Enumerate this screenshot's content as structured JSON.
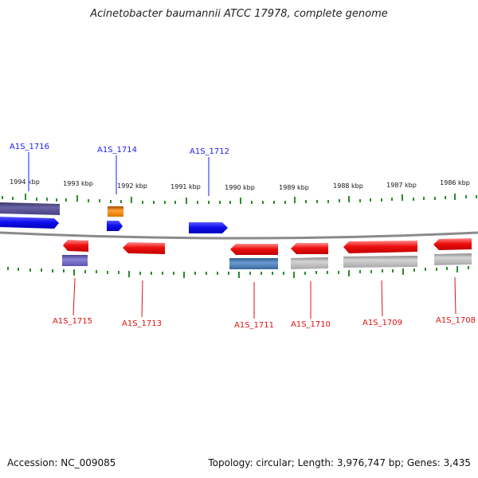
{
  "title": "Acinetobacter baumannii ATCC 17978, complete genome",
  "footer": {
    "accession": "Accession: NC_009085",
    "summary": "Topology: circular; Length: 3,976,747 bp; Genes: 3,435"
  },
  "axis": {
    "unit": "kbp",
    "ticks": [
      {
        "label": "1994 kbp",
        "kbp": 1994
      },
      {
        "label": "1993 kbp",
        "kbp": 1993
      },
      {
        "label": "1992 kbp",
        "kbp": 1992
      },
      {
        "label": "1991 kbp",
        "kbp": 1991
      },
      {
        "label": "1990 kbp",
        "kbp": 1990
      },
      {
        "label": "1989 kbp",
        "kbp": 1989
      },
      {
        "label": "1988 kbp",
        "kbp": 1988
      },
      {
        "label": "1987 kbp",
        "kbp": 1987
      },
      {
        "label": "1986 kbp",
        "kbp": 1986
      }
    ]
  },
  "colors": {
    "forward_label": "#1a1aff",
    "reverse_label": "#e01010",
    "gene_forward": "#1010ee",
    "gene_reverse": "#ee1010",
    "orange": "#f08a00",
    "purple": "#6a60c0",
    "dark_purple": "#504a88",
    "steel_blue": "#4a7db8",
    "gray": "#b5b5b5",
    "backbone": "#8a8a8a",
    "tick": "#2e8b2e"
  },
  "forward_genes": [
    {
      "label": "A1S_1716",
      "color_key": "gene_forward",
      "companion": "dark_purple"
    },
    {
      "label": "A1S_1714",
      "color_key": "gene_forward",
      "companion": "orange"
    },
    {
      "label": "A1S_1712",
      "color_key": "gene_forward",
      "companion": null
    }
  ],
  "reverse_genes": [
    {
      "label": "A1S_1715",
      "color_key": "gene_reverse",
      "companion": "purple"
    },
    {
      "label": "A1S_1713",
      "color_key": "gene_reverse",
      "companion": null
    },
    {
      "label": "A1S_1711",
      "color_key": "gene_reverse",
      "companion": "steel_blue"
    },
    {
      "label": "A1S_1710",
      "color_key": "gene_reverse",
      "companion": "gray"
    },
    {
      "label": "A1S_1709",
      "color_key": "gene_reverse",
      "companion": "gray"
    },
    {
      "label": "A1S_1708",
      "color_key": "gene_reverse",
      "companion": "gray"
    }
  ]
}
